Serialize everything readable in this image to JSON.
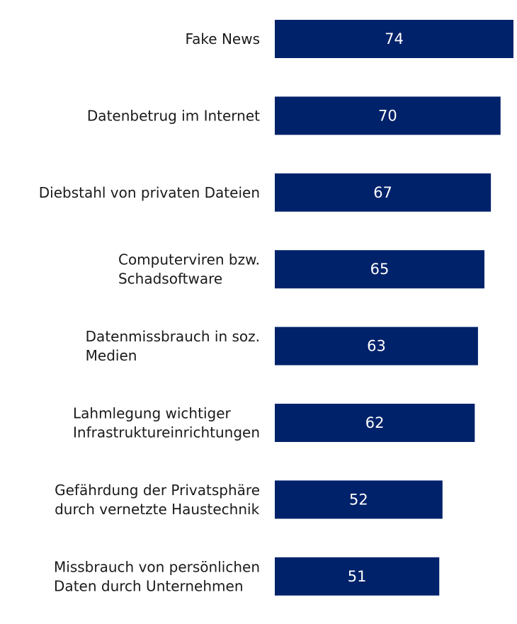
{
  "chart_data": {
    "type": "bar",
    "orientation": "horizontal",
    "title": "",
    "xlabel": "",
    "ylabel": "",
    "xlim": [
      0,
      74
    ],
    "grid": false,
    "legend": "none",
    "bar_color": "#00226A",
    "label_color": "#1a1a1a",
    "value_label_color": "#ffffff",
    "categories": [
      [
        "Fake News"
      ],
      [
        "Datenbetrug im Internet"
      ],
      [
        "Diebstahl von privaten Dateien"
      ],
      [
        "Computerviren bzw.",
        "Schadsoftware"
      ],
      [
        "Datenmissbrauch in soz.",
        "Medien"
      ],
      [
        "Lahmlegung wichtiger",
        "Infrastruktureinrichtungen"
      ],
      [
        "Gefährdung der Privatsphäre",
        "durch vernetzte Haustechnik"
      ],
      [
        "Missbrauch von persönlichen",
        "Daten durch Unternehmen"
      ]
    ],
    "values": [
      74,
      70,
      67,
      65,
      63,
      62,
      52,
      51
    ]
  }
}
